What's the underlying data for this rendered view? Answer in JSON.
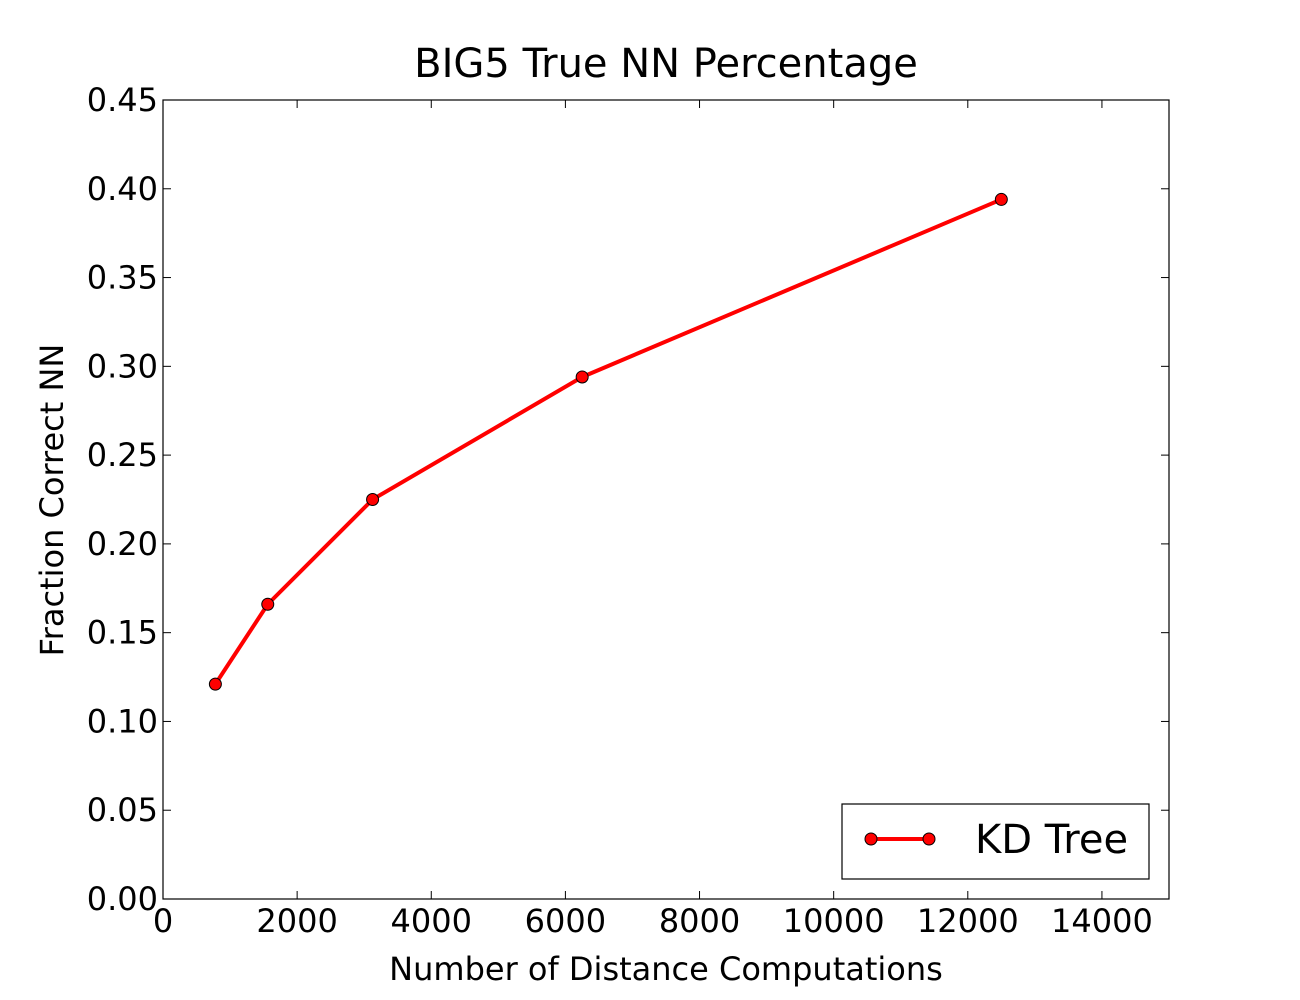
{
  "chart_data": {
    "type": "line",
    "title": "BIG5 True NN Percentage",
    "xlabel": "Number of Distance Computations",
    "ylabel": "Fraction Correct NN",
    "xlim": [
      0,
      15000
    ],
    "ylim": [
      0,
      0.45
    ],
    "xticks": [
      0,
      2000,
      4000,
      6000,
      8000,
      10000,
      12000,
      14000
    ],
    "xtick_labels": [
      "0",
      "2000",
      "4000",
      "6000",
      "8000",
      "10000",
      "12000",
      "14000"
    ],
    "yticks": [
      0,
      0.05,
      0.1,
      0.15,
      0.2,
      0.25,
      0.3,
      0.35,
      0.4,
      0.45
    ],
    "ytick_labels": [
      "0.00",
      "0.05",
      "0.10",
      "0.15",
      "0.20",
      "0.25",
      "0.30",
      "0.35",
      "0.40",
      "0.45"
    ],
    "grid": false,
    "legend_position": "bottom-right",
    "series": [
      {
        "name": "KD Tree",
        "color": "#ff0000",
        "marker": "circle",
        "x": [
          781,
          1562,
          3125,
          6250,
          12500
        ],
        "y": [
          0.121,
          0.166,
          0.225,
          0.294,
          0.394
        ]
      }
    ]
  }
}
